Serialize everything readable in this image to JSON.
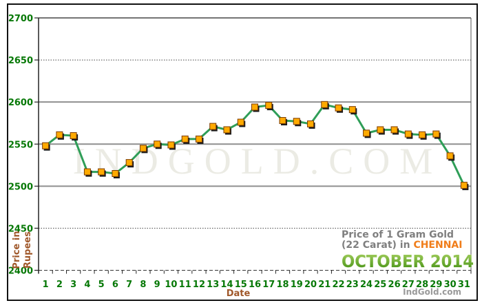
{
  "chart_data": {
    "type": "line",
    "x": [
      1,
      2,
      3,
      4,
      5,
      6,
      7,
      8,
      9,
      10,
      11,
      12,
      13,
      14,
      15,
      16,
      17,
      18,
      19,
      20,
      21,
      22,
      23,
      24,
      25,
      26,
      27,
      28,
      29,
      30,
      31
    ],
    "values": [
      2548,
      2561,
      2560,
      2517,
      2517,
      2515,
      2528,
      2545,
      2550,
      2549,
      2556,
      2556,
      2571,
      2567,
      2576,
      2594,
      2596,
      2578,
      2577,
      2574,
      2597,
      2593,
      2591,
      2563,
      2567,
      2567,
      2562,
      2561,
      2562,
      2536,
      2501
    ],
    "xlabel": "Date",
    "ylabel": "Price in Rupees",
    "ylim": [
      2400,
      2700
    ],
    "yticks": [
      2700,
      2650,
      2600,
      2550,
      2500,
      2450,
      2400
    ],
    "grid": true,
    "legend": "none",
    "marker": "square"
  },
  "axis": {
    "y_title_line1": "Price in",
    "y_title_line2": "Rupees",
    "x_title": "Date"
  },
  "title": {
    "line1": "Price of 1 Gram Gold",
    "line2_prefix": "(22 Carat) in ",
    "city": "CHENNAI",
    "period": "OCTOBER 2014"
  },
  "watermark": {
    "text": "INDGOLD.COM"
  },
  "credit": "IndGold.com",
  "colors": {
    "line": "#2f9e58",
    "marker_fill": "#ffaa00",
    "marker_edge": "#7a3a00",
    "marker_shadow": "#1a1a1a",
    "tick_label_green": "#067806",
    "axis_title_brown": "#a0582a",
    "title_gray": "#7f7f7f",
    "city_orange": "#f07d1a",
    "period_green_top": "#abd363",
    "period_green_bottom": "#3e8d10",
    "gridline_gray": "#8f8f8f",
    "watermark_gray": "#ebebe4"
  }
}
